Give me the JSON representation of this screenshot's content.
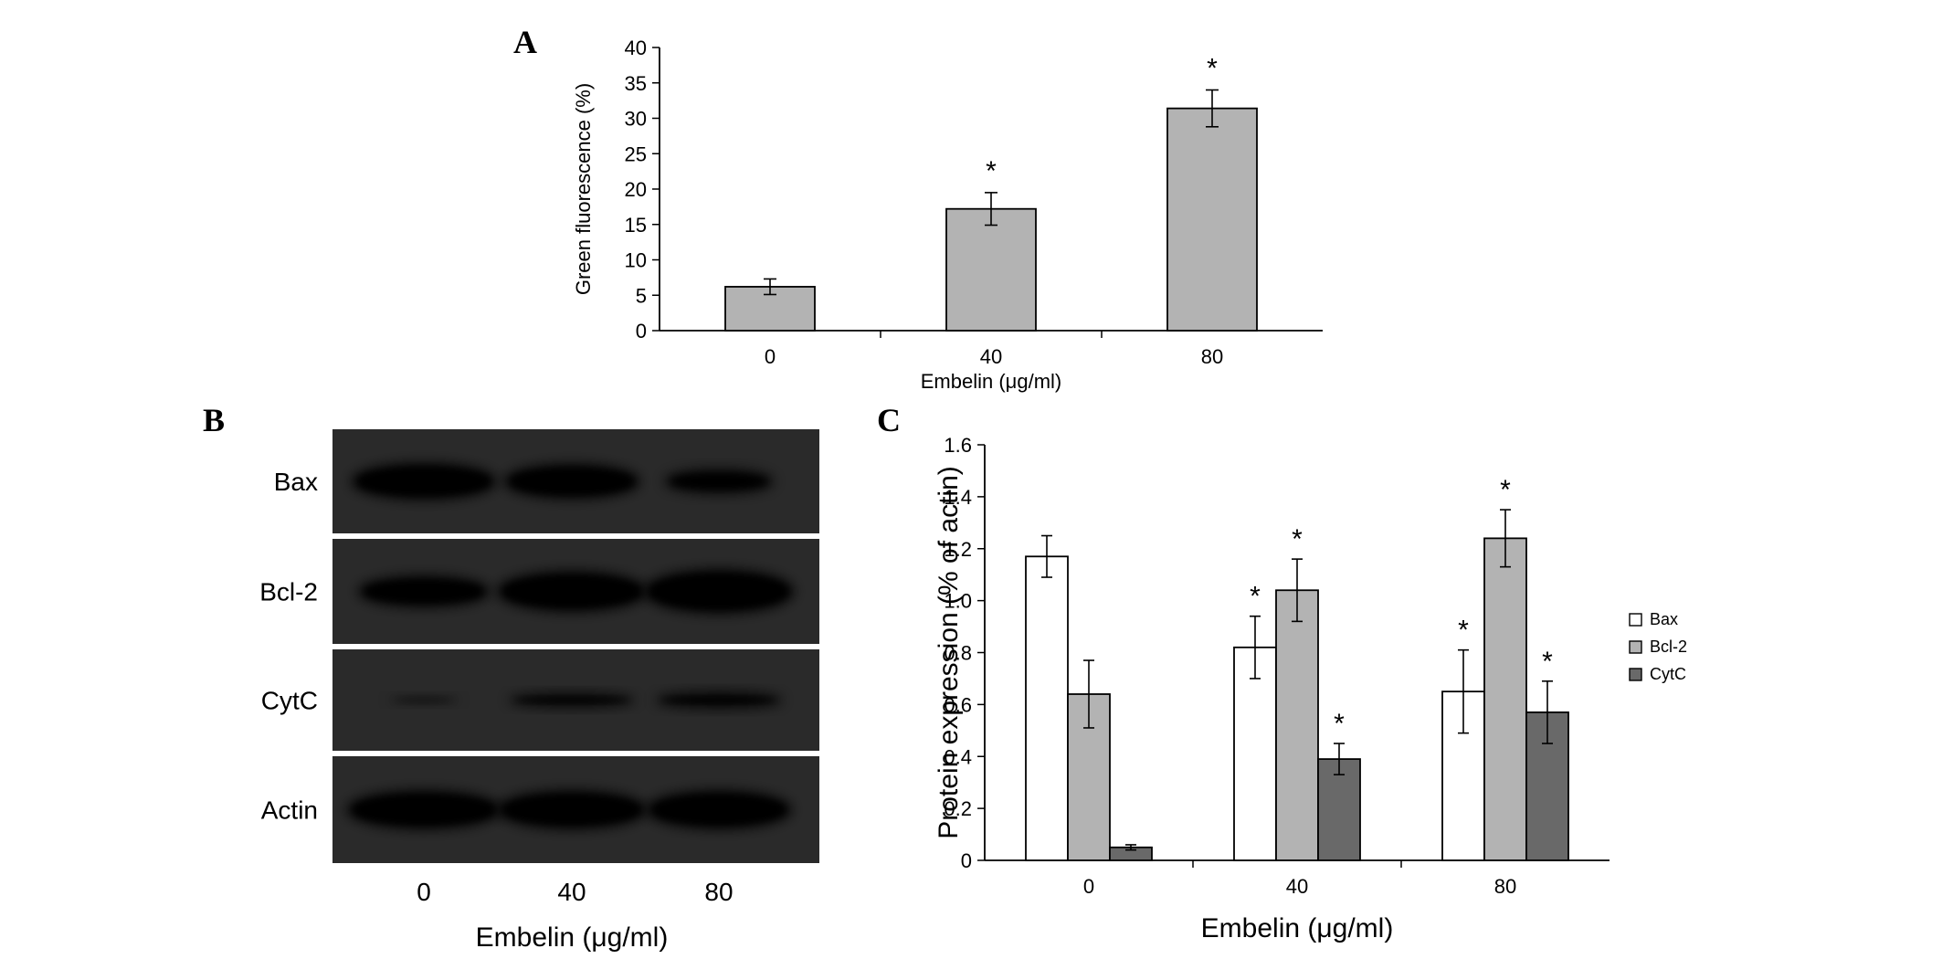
{
  "panels": {
    "a": "A",
    "b": "B",
    "c": "C"
  },
  "chart_data": [
    {
      "id": "A",
      "type": "bar",
      "categories": [
        "0",
        "40",
        "80"
      ],
      "series": [
        {
          "values": [
            6.2,
            17.2,
            31.4
          ],
          "errors": [
            1.1,
            2.3,
            2.6
          ],
          "significant": [
            false,
            true,
            true
          ],
          "color": "#b3b3b3"
        }
      ],
      "xlabel": "Embelin (μg/ml)",
      "ylabel": "Green fluorescence (%)",
      "ylim": [
        0,
        40
      ],
      "yticks": [
        "0",
        "5",
        "10",
        "15",
        "20",
        "25",
        "30",
        "35",
        "40"
      ],
      "significance_marker": "*",
      "grid": false
    },
    {
      "id": "B",
      "type": "other",
      "description_kind": "western-blot",
      "rows": [
        "Bax",
        "Bcl-2",
        "CytC",
        "Actin"
      ],
      "lanes": [
        "0",
        "40",
        "80"
      ],
      "xlabel": "Embelin (μg/ml)"
    },
    {
      "id": "C",
      "type": "bar",
      "categories": [
        "0",
        "40",
        "80"
      ],
      "series": [
        {
          "name": "Bax",
          "values": [
            1.17,
            0.82,
            0.65
          ],
          "errors": [
            0.08,
            0.12,
            0.16
          ],
          "significant": [
            false,
            true,
            true
          ],
          "color": "#ffffff"
        },
        {
          "name": "Bcl-2",
          "values": [
            0.64,
            1.04,
            1.24
          ],
          "errors": [
            0.13,
            0.12,
            0.11
          ],
          "significant": [
            false,
            true,
            true
          ],
          "color": "#b3b3b3"
        },
        {
          "name": "CytC",
          "values": [
            0.05,
            0.39,
            0.57
          ],
          "errors": [
            0.01,
            0.06,
            0.12
          ],
          "significant": [
            false,
            true,
            true
          ],
          "color": "#696969"
        }
      ],
      "xlabel": "Embelin (μg/ml)",
      "ylabel": "Protein expression (% of actin)",
      "ylim": [
        0,
        1.6
      ],
      "yticks": [
        "0",
        "0.2",
        "0.4",
        "0.6",
        "0.8",
        "1.0",
        "1.2",
        "1.4",
        "1.6"
      ],
      "significance_marker": "*",
      "legend_position": "right",
      "grid": false
    }
  ]
}
